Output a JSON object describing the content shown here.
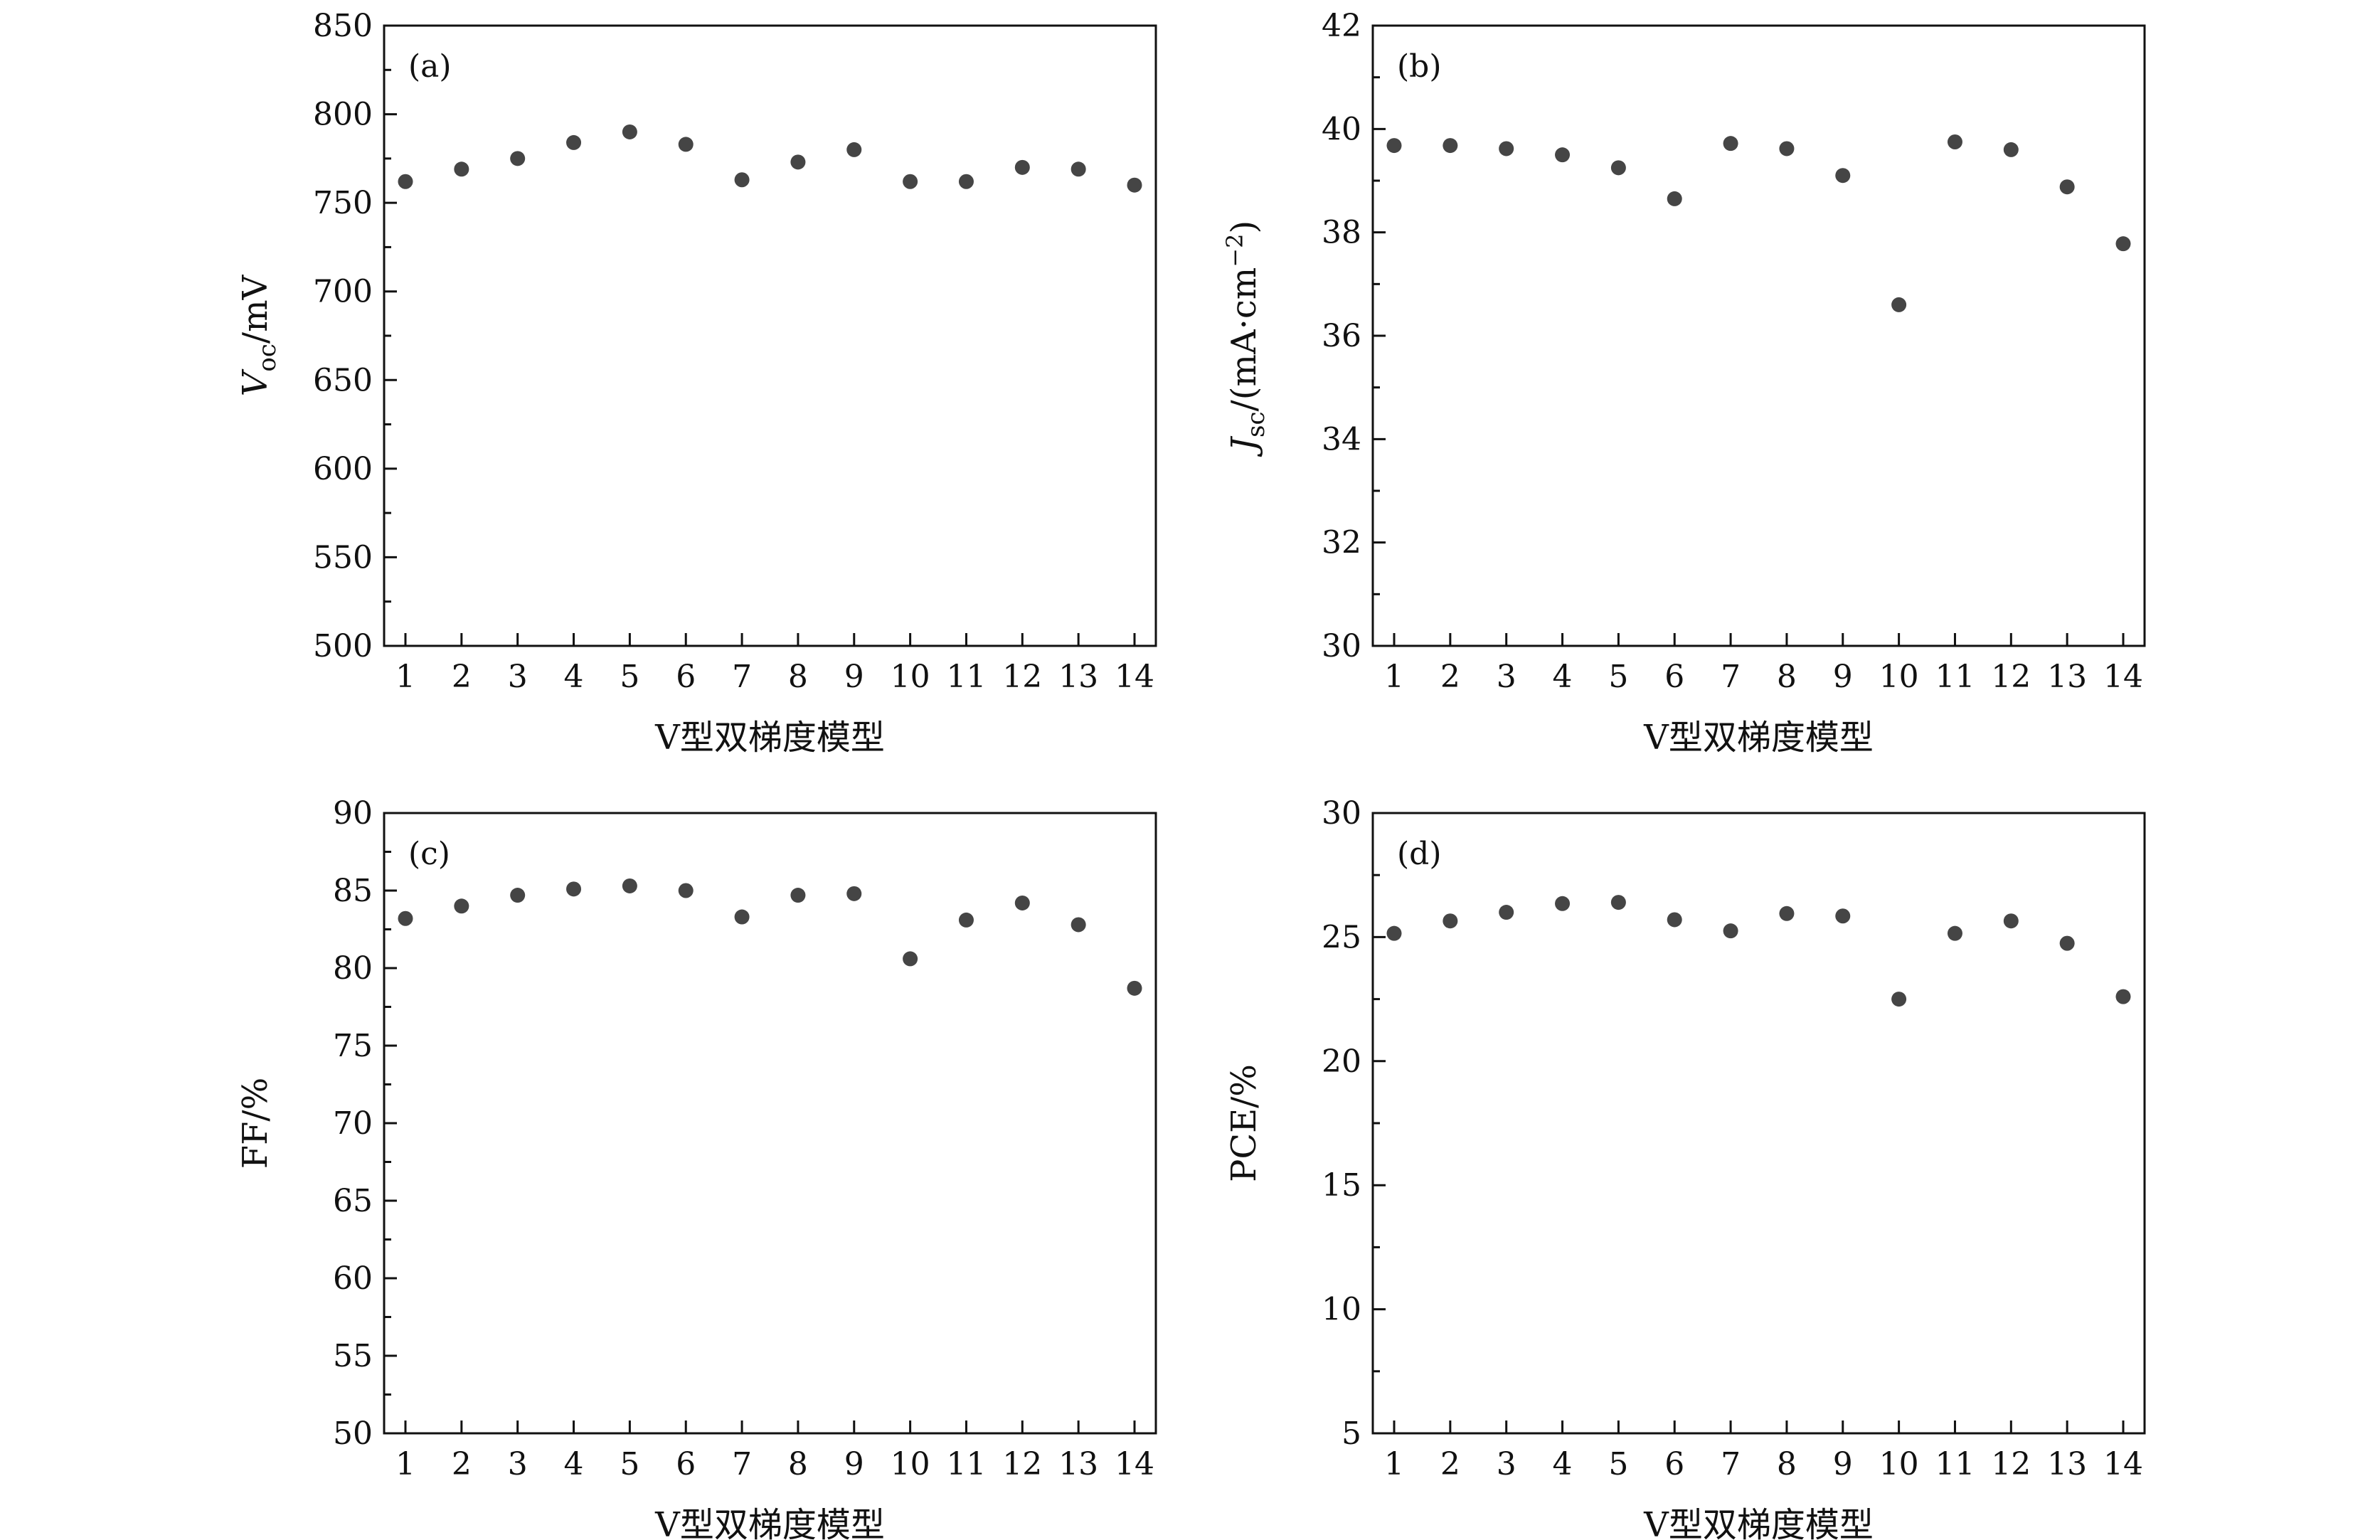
{
  "figure": {
    "point_color": "#454545",
    "axis_color": "#111111"
  },
  "chart_data": [
    {
      "type": "scatter",
      "panel_label": "(a)",
      "xlabel": "V型双梯度模型",
      "ylabel": "V_oc/mV",
      "ylabel_main": "V",
      "ylabel_sub": "oc",
      "ylabel_rest": "/mV",
      "x": [
        1,
        2,
        3,
        4,
        5,
        6,
        7,
        8,
        9,
        10,
        11,
        12,
        13,
        14
      ],
      "y": [
        762,
        769,
        775,
        784,
        790,
        783,
        763,
        773,
        780,
        762,
        762,
        770,
        769,
        760
      ],
      "ylim": [
        500,
        850
      ],
      "yticks": [
        500,
        550,
        600,
        650,
        700,
        750,
        800,
        850
      ],
      "xticks": [
        "1",
        "2",
        "3",
        "4",
        "5",
        "6",
        "7",
        "8",
        "9",
        "10",
        "11",
        "12",
        "13",
        "14"
      ],
      "grid": false
    },
    {
      "type": "scatter",
      "panel_label": "(b)",
      "xlabel": "V型双梯度模型",
      "ylabel": "J_sc/(mA·cm^−2)",
      "ylabel_main": "J",
      "ylabel_sub": "sc",
      "ylabel_rest": "/(mA·cm",
      "ylabel_sup": "−2",
      "ylabel_end": ")",
      "x": [
        1,
        2,
        3,
        4,
        5,
        6,
        7,
        8,
        9,
        10,
        11,
        12,
        13,
        14
      ],
      "y": [
        39.68,
        39.68,
        39.62,
        39.5,
        39.25,
        38.65,
        39.72,
        39.62,
        39.1,
        36.6,
        39.75,
        39.6,
        38.88,
        37.78
      ],
      "ylim": [
        30,
        42
      ],
      "yticks": [
        30,
        32,
        34,
        36,
        38,
        40,
        42
      ],
      "xticks": [
        "1",
        "2",
        "3",
        "4",
        "5",
        "6",
        "7",
        "8",
        "9",
        "10",
        "11",
        "12",
        "13",
        "14"
      ],
      "grid": false
    },
    {
      "type": "scatter",
      "panel_label": "(c)",
      "xlabel": "V型双梯度模型",
      "ylabel": "FF/%",
      "ylabel_main": "FF/%",
      "x": [
        1,
        2,
        3,
        4,
        5,
        6,
        7,
        8,
        9,
        10,
        11,
        12,
        13,
        14
      ],
      "y": [
        83.2,
        84.0,
        84.7,
        85.1,
        85.3,
        85.0,
        83.3,
        84.7,
        84.8,
        80.6,
        83.1,
        84.2,
        82.8,
        78.7
      ],
      "ylim": [
        50,
        90
      ],
      "yticks": [
        50,
        55,
        60,
        65,
        70,
        75,
        80,
        85,
        90
      ],
      "xticks": [
        "1",
        "2",
        "3",
        "4",
        "5",
        "6",
        "7",
        "8",
        "9",
        "10",
        "11",
        "12",
        "13",
        "14"
      ],
      "grid": false
    },
    {
      "type": "scatter",
      "panel_label": "(d)",
      "xlabel": "V型双梯度模型",
      "ylabel": "PCE/%",
      "ylabel_main": "PCE/%",
      "x": [
        1,
        2,
        3,
        4,
        5,
        6,
        7,
        8,
        9,
        10,
        11,
        12,
        13,
        14
      ],
      "y": [
        25.15,
        25.65,
        26.0,
        26.35,
        26.4,
        25.7,
        25.25,
        25.95,
        25.85,
        22.5,
        25.15,
        25.65,
        24.75,
        22.6
      ],
      "ylim": [
        5,
        30
      ],
      "yticks": [
        5,
        10,
        15,
        20,
        25,
        30
      ],
      "xticks": [
        "1",
        "2",
        "3",
        "4",
        "5",
        "6",
        "7",
        "8",
        "9",
        "10",
        "11",
        "12",
        "13",
        "14"
      ],
      "grid": false
    }
  ]
}
